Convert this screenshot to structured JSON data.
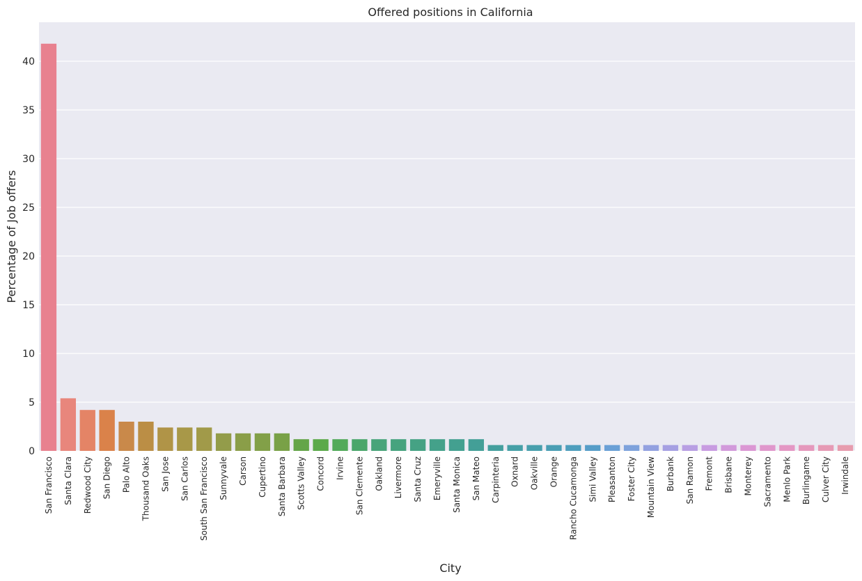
{
  "chart_data": {
    "type": "bar",
    "title": "Offered positions in California",
    "xlabel": "City",
    "ylabel": "Percentage of Job offers",
    "ylim": [
      0,
      44
    ],
    "yticks": [
      0,
      5,
      10,
      15,
      20,
      25,
      30,
      35,
      40
    ],
    "grid": true,
    "categories": [
      "San Francisco",
      "Santa Clara",
      "Redwood City",
      "San Diego",
      "Palo Alto",
      "Thousand Oaks",
      "San Jose",
      "San Carlos",
      "South San Francisco",
      "Sunnyvale",
      "Carson",
      "Cupertino",
      "Santa Barbara",
      "Scotts Valley",
      "Concord",
      "Irvine",
      "San Clemente",
      "Oakland",
      "Livermore",
      "Santa Cruz",
      "Emeryville",
      "Santa Monica",
      "San Mateo",
      "Carpinteria",
      "Oxnard",
      "Oakville",
      "Orange",
      "Rancho Cucamonga",
      "Simi Valley",
      "Pleasanton",
      "Foster City",
      "Mountain View",
      "Burbank",
      "San Ramon",
      "Fremont",
      "Brisbane",
      "Monterey",
      "Sacramento",
      "Menlo Park",
      "Burlingame",
      "Culver City",
      "Irwindale"
    ],
    "values": [
      41.8,
      5.4,
      4.2,
      4.2,
      3.0,
      3.0,
      2.4,
      2.4,
      2.4,
      1.8,
      1.8,
      1.8,
      1.8,
      1.2,
      1.2,
      1.2,
      1.2,
      1.2,
      1.2,
      1.2,
      1.2,
      1.2,
      1.2,
      0.6,
      0.6,
      0.6,
      0.6,
      0.6,
      0.6,
      0.6,
      0.6,
      0.6,
      0.6,
      0.6,
      0.6,
      0.6,
      0.6,
      0.6,
      0.6,
      0.6,
      0.6,
      0.6
    ],
    "colors": [
      "#e8818f",
      "#e8867c",
      "#e48466",
      "#da824a",
      "#c9894a",
      "#bb8e45",
      "#b09447",
      "#a89848",
      "#a19a49",
      "#939c4a",
      "#8a9e48",
      "#82a048",
      "#79a147",
      "#64a548",
      "#5ba94a",
      "#52aa5a",
      "#4aa66b",
      "#48a47a",
      "#46a37e",
      "#45a284",
      "#44a18a",
      "#43a090",
      "#439f97",
      "#449f9e",
      "#46a0a7",
      "#489fad",
      "#4a9eb4",
      "#4e9ebd",
      "#569dc8",
      "#6aa0d6",
      "#7ea2dc",
      "#93a1e0",
      "#a6a0e2",
      "#b89fe3",
      "#c89ce1",
      "#d29adb",
      "#db97d4",
      "#e097cc",
      "#e497c4",
      "#e598bc",
      "#e69ab5",
      "#e79cae"
    ]
  }
}
